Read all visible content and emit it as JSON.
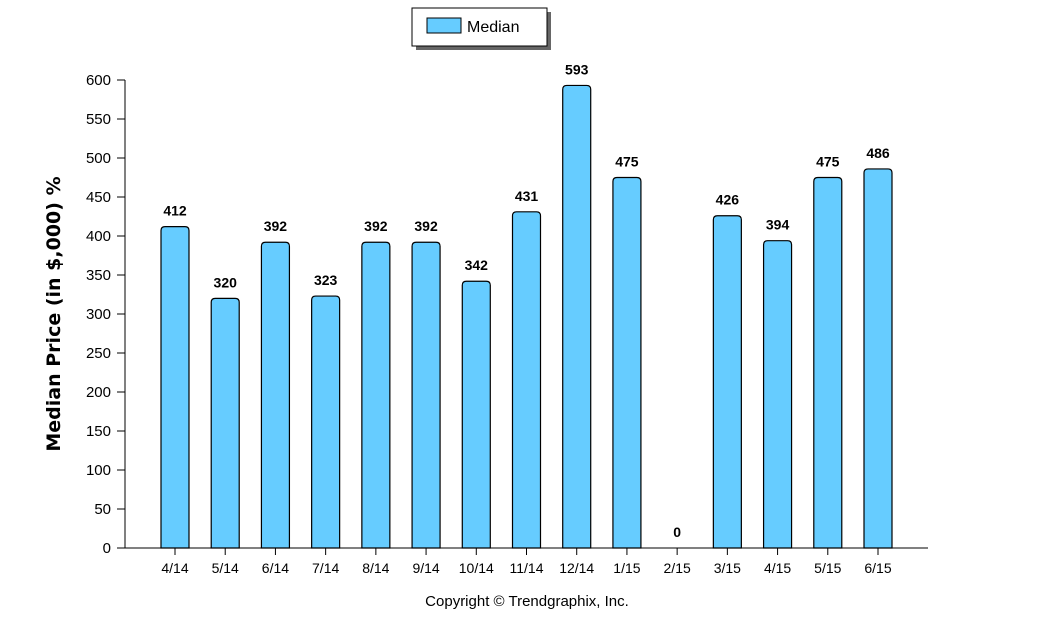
{
  "chart_data": {
    "type": "bar",
    "categories": [
      "4/14",
      "5/14",
      "6/14",
      "7/14",
      "8/14",
      "9/14",
      "10/14",
      "11/14",
      "12/14",
      "1/15",
      "2/15",
      "3/15",
      "4/15",
      "5/15",
      "6/15"
    ],
    "series": [
      {
        "name": "Median",
        "values": [
          412,
          320,
          392,
          323,
          392,
          392,
          342,
          431,
          593,
          475,
          0,
          426,
          394,
          475,
          486
        ],
        "color": "#66ccff"
      }
    ],
    "data_labels": [
      "412",
      "320",
      "392",
      "323",
      "392",
      "392",
      "342",
      "431",
      "593",
      "475",
      "0",
      "426",
      "394",
      "475",
      "486"
    ],
    "ylabel": "Median Price (in $,000) %",
    "xlabel": "",
    "ylim": [
      0,
      600
    ],
    "yticks": [
      0,
      50,
      100,
      150,
      200,
      250,
      300,
      350,
      400,
      450,
      500,
      550,
      600
    ],
    "ytick_labels": [
      "0",
      "50",
      "100",
      "150",
      "200",
      "250",
      "300",
      "350",
      "400",
      "450",
      "500",
      "550",
      "600"
    ],
    "grid": false,
    "legend": {
      "label": "Median",
      "position": "top-center"
    },
    "footer": "Copyright © Trendgraphix, Inc.",
    "colors": {
      "bar_fill": "#66ccff",
      "bar_stroke": "#000000",
      "axis": "#000000"
    }
  }
}
